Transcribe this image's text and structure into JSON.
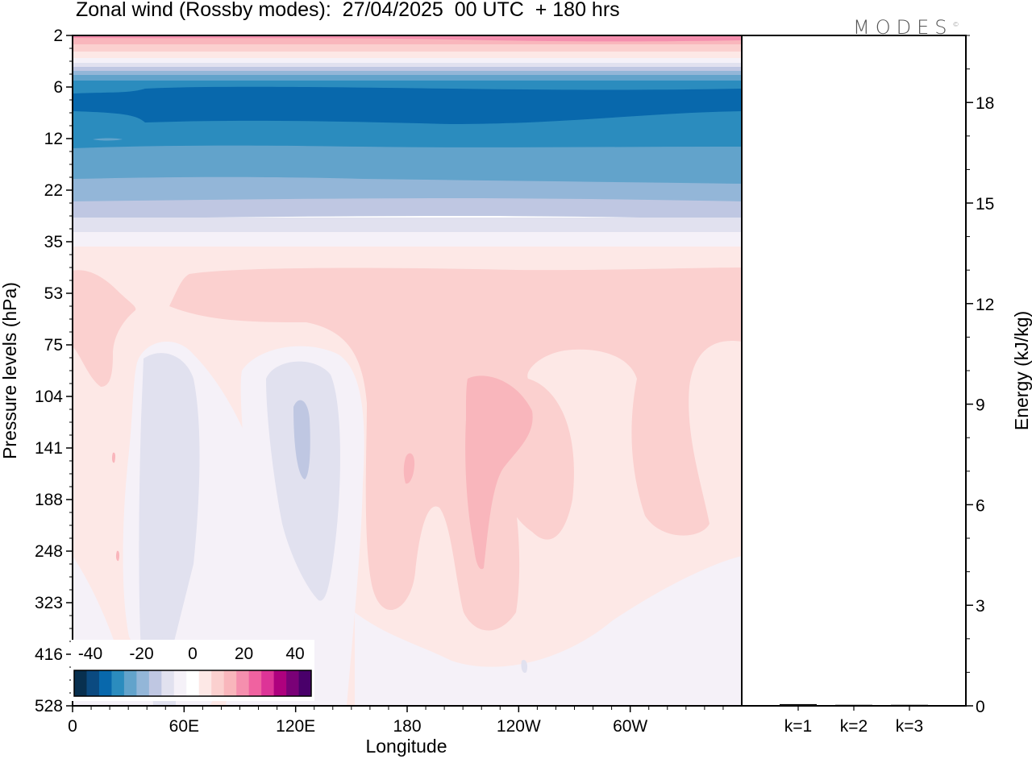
{
  "title": "Zonal wind (Rossby modes):  27/04/2025  00 UTC  + 180 hrs",
  "logo": "MODES",
  "logo_mark": "©",
  "chart_data": [
    {
      "type": "heatmap",
      "variable": "Zonal wind (Rossby modes)",
      "xlabel": "Longitude",
      "ylabel": "Pressure levels (hPa)",
      "x_ticks": [
        "0",
        "60E",
        "120E",
        "180",
        "120W",
        "60W"
      ],
      "y_ticks": [
        "2",
        "6",
        "12",
        "22",
        "35",
        "53",
        "75",
        "104",
        "141",
        "188",
        "248",
        "323",
        "416",
        "528"
      ],
      "y_reversed": true,
      "colorbar": {
        "labels": [
          "-40",
          "-20",
          "0",
          "20",
          "40"
        ],
        "colors": [
          "#08304f",
          "#0b4a80",
          "#0868ac",
          "#2b8cbe",
          "#62a3cb",
          "#93b6d8",
          "#bfc7e2",
          "#e1e1ef",
          "#f5f1f8",
          "#ffffff",
          "#fde8e6",
          "#fbd0cf",
          "#f9b6bc",
          "#f58fae",
          "#f062a0",
          "#dd3497",
          "#ae017e",
          "#7a0177",
          "#49006a"
        ]
      },
      "grid": false
    },
    {
      "type": "bar",
      "ylabel": "Energy (kJ/kg)",
      "categories": [
        "k=1",
        "k=2",
        "k=3"
      ],
      "values": [
        0.05,
        0.03,
        0.03
      ],
      "ylim": [
        0,
        20
      ],
      "y_ticks": [
        "0",
        "3",
        "6",
        "9",
        "12",
        "15",
        "18"
      ],
      "grid": false
    }
  ]
}
